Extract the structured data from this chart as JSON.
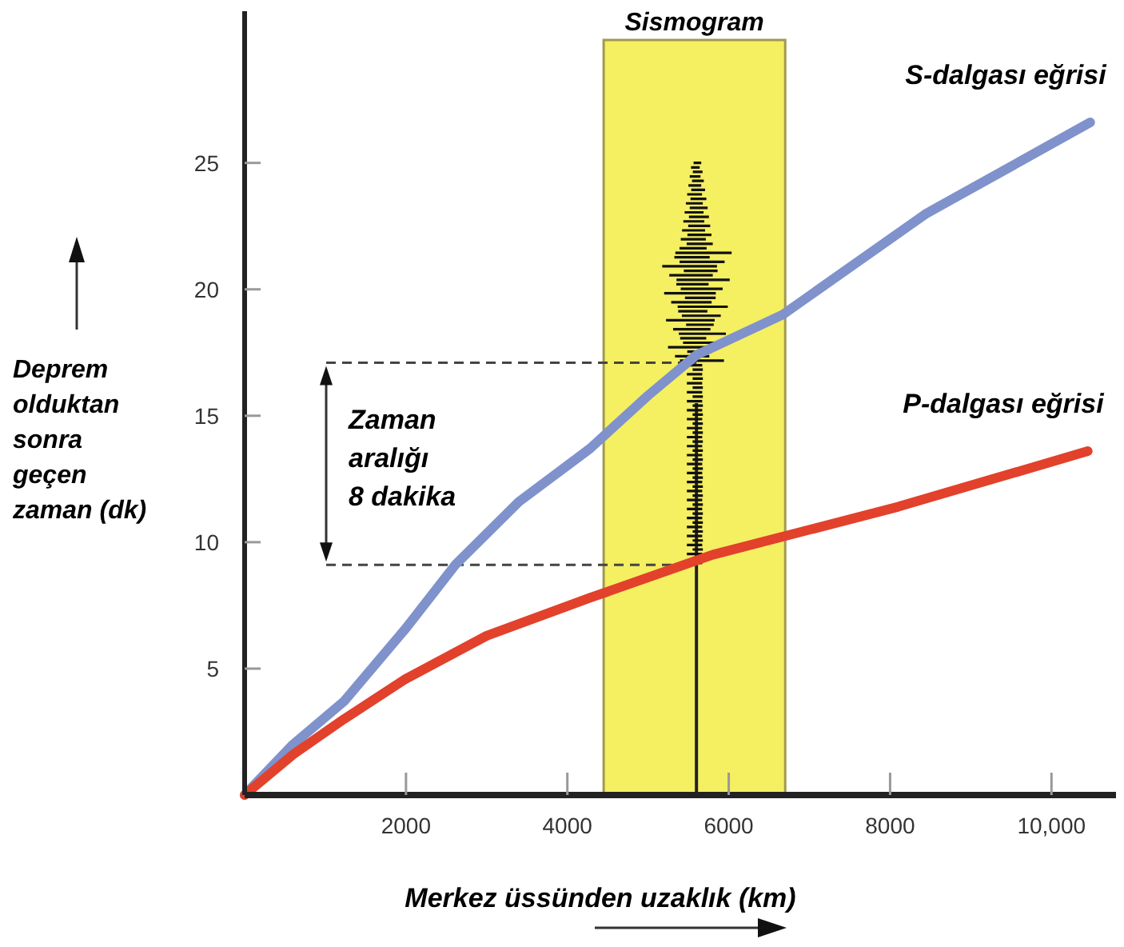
{
  "chart_data": {
    "type": "line",
    "xlabel": "Merkez üssünden uzaklık (km)",
    "ylabel": "Deprem olduktan sonra geçen zaman (dk)",
    "xlim": [
      0,
      10800
    ],
    "xticks": [
      2000,
      4000,
      6000,
      8000,
      {
        "value": 10000,
        "label": "10,000"
      }
    ],
    "ylim": [
      0,
      31
    ],
    "yticks": [
      5,
      10,
      15,
      20,
      25
    ],
    "grid": false,
    "marker": "none",
    "line_style": "solid",
    "series": [
      {
        "name": "S-dalgası eğrisi",
        "color": "#7f92cc",
        "x": [
          0,
          600,
          1230,
          2000,
          2610,
          3400,
          4280,
          5000,
          5600,
          6670,
          8450,
          10480
        ],
        "values": [
          0,
          2.0,
          3.7,
          6.6,
          9.1,
          11.6,
          13.7,
          15.8,
          17.4,
          19.0,
          23.0,
          26.6
        ]
      },
      {
        "name": "P-dalgası eğrisi",
        "color": "#e2412c",
        "x": [
          0,
          600,
          1230,
          2000,
          3000,
          4280,
          5800,
          8100,
          10450
        ],
        "values": [
          0,
          1.6,
          3.0,
          4.6,
          6.3,
          7.8,
          9.5,
          11.4,
          13.6
        ]
      }
    ],
    "bands": [
      {
        "axis": "x",
        "from": 4450,
        "to": 6700,
        "label": "Sismogram",
        "color": "#f5ef62"
      }
    ],
    "ref_lines": [
      {
        "axis": "x",
        "value": 5600,
        "color": "#222222",
        "line_style": "solid"
      },
      {
        "axis": "y",
        "value": 17.1,
        "color": "#444444",
        "line_style": "dashed"
      },
      {
        "axis": "y",
        "value": 9.1,
        "color": "#444444",
        "line_style": "dashed"
      }
    ],
    "annotations": [
      "Zaman aralığı 8 dakika"
    ]
  }
}
